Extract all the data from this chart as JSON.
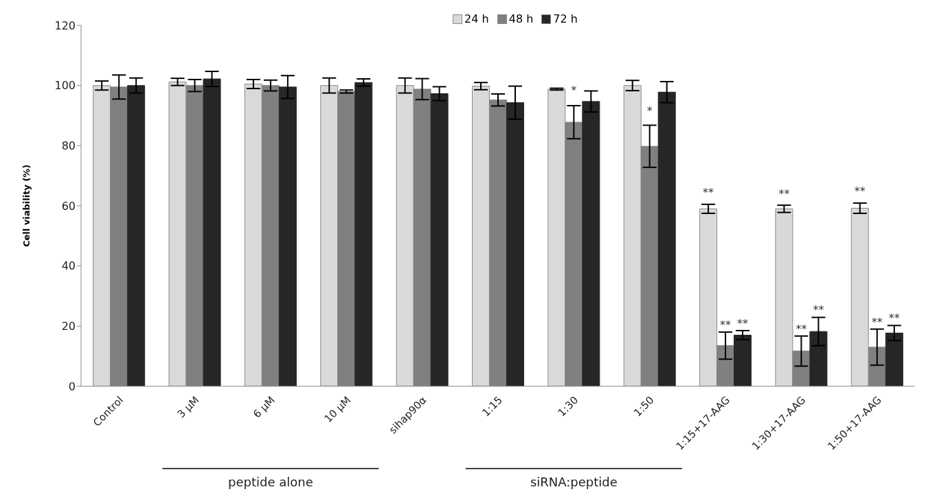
{
  "chart_data": {
    "type": "bar",
    "ylabel": "Cell viability (%)",
    "categories": [
      "Control",
      "3 μM",
      "6 μM",
      "10 μM",
      "sihap90α",
      "1:15",
      "1:30",
      "1:50",
      "1:15+17-AAG",
      "1:30+17-AAG",
      "1:50+17-AAG"
    ],
    "series": [
      {
        "name": "24 h",
        "color": "#d9d9d9",
        "values": [
          100,
          101.2,
          100.5,
          100,
          100,
          99.8,
          98.8,
          100,
          59,
          59,
          59.2
        ],
        "errors": [
          1.5,
          1.2,
          1.5,
          2.5,
          2.5,
          1.2,
          0.3,
          1.7,
          1.5,
          1.2,
          1.7
        ],
        "value_labels": [
          null,
          null,
          null,
          null,
          null,
          null,
          null,
          null,
          "**",
          "**",
          "**"
        ]
      },
      {
        "name": "48 h",
        "color": "#808080",
        "values": [
          99.5,
          100,
          100,
          98,
          98.8,
          95.2,
          87.8,
          79.8,
          13.5,
          11.7,
          13
        ],
        "errors": [
          4,
          2,
          1.8,
          0.5,
          3.5,
          2,
          5.5,
          7,
          4.5,
          5,
          6
        ],
        "value_labels": [
          null,
          null,
          null,
          null,
          null,
          null,
          "*",
          "*",
          "**",
          "**",
          "**"
        ]
      },
      {
        "name": "72 h",
        "color": "#262626",
        "values": [
          100,
          102.2,
          99.5,
          101,
          97.3,
          94.3,
          94.7,
          97.8,
          17,
          18.2,
          17.7
        ],
        "errors": [
          2.5,
          2.5,
          3.8,
          1.2,
          2.3,
          5.5,
          3.5,
          3.5,
          1.5,
          4.7,
          2.5
        ],
        "value_labels": [
          null,
          null,
          null,
          null,
          null,
          null,
          null,
          null,
          "**",
          "**",
          "**"
        ]
      }
    ],
    "ylim": [
      0,
      120
    ],
    "yticks": [
      0,
      20,
      40,
      60,
      80,
      100,
      120
    ],
    "grid": false,
    "legend": "top",
    "annotations": [
      "peptide alone",
      "siRNA:peptide"
    ]
  }
}
